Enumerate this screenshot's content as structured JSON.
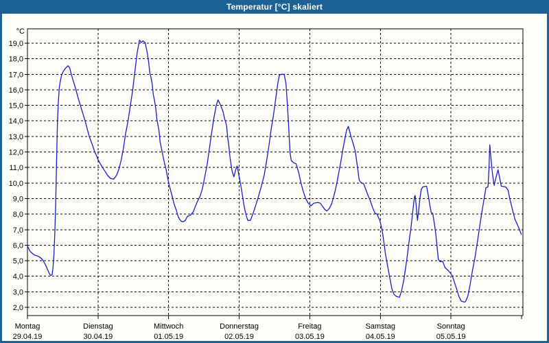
{
  "window": {
    "title": "Temperatur [°C] skaliert"
  },
  "colors": {
    "titlebar_bg": "#1D6295",
    "titlebar_text": "#FFFFFF",
    "window_border": "#1D6295",
    "client_bg": "#FDFEF9",
    "grid": "#000000",
    "text": "#000000",
    "curve": "#1A1AC8"
  },
  "chart_data": {
    "type": "line",
    "title": "Temperatur [°C] skaliert",
    "xlabel": "",
    "ylabel": "°C",
    "grid": "dashed-black",
    "legend_position": "none",
    "y_axis": {
      "unit": "°C",
      "min": 2,
      "max": 19,
      "step": 1,
      "tick_labels": [
        "19,0",
        "18,0",
        "17,0",
        "16,0",
        "15,0",
        "14,0",
        "13,0",
        "12,0",
        "11,0",
        "10,0",
        "9,0",
        "8,0",
        "7,0",
        "6,0",
        "5,0",
        "4,0",
        "3,0",
        "2,0"
      ],
      "plot_value_range": [
        1.5,
        19.9
      ]
    },
    "x_axis": {
      "hours_total": 168,
      "days": [
        {
          "name": "Montag",
          "date": "29.04.19"
        },
        {
          "name": "Dienstag",
          "date": "30.04.19"
        },
        {
          "name": "Mittwoch",
          "date": "01.05.19"
        },
        {
          "name": "Donnerstag",
          "date": "02.05.19"
        },
        {
          "name": "Freitag",
          "date": "03.05.19"
        },
        {
          "name": "Samstag",
          "date": "04.05.19"
        },
        {
          "name": "Sonntag",
          "date": "05.05.19"
        }
      ]
    },
    "series": [
      {
        "name": "Temperatur",
        "color": "#1A1AC8",
        "points_format": "[hours_since_mon_00, temp_celsius]",
        "points": [
          [
            0,
            5.95
          ],
          [
            0.9,
            5.6
          ],
          [
            1.8,
            5.45
          ],
          [
            2.6,
            5.35
          ],
          [
            3.5,
            5.3
          ],
          [
            4.4,
            5.2
          ],
          [
            5.2,
            5.05
          ],
          [
            6.1,
            4.75
          ],
          [
            6.9,
            4.4
          ],
          [
            7.5,
            4.15
          ],
          [
            7.9,
            4.05
          ],
          [
            8.4,
            4.1
          ],
          [
            8.7,
            4.6
          ],
          [
            9,
            5.4
          ],
          [
            9.3,
            6.8
          ],
          [
            9.6,
            8.6
          ],
          [
            9.8,
            10.5
          ],
          [
            10,
            12.3
          ],
          [
            10.2,
            13.9
          ],
          [
            10.5,
            15.2
          ],
          [
            10.8,
            16.1
          ],
          [
            11.2,
            16.6
          ],
          [
            11.7,
            17
          ],
          [
            12.4,
            17.25
          ],
          [
            13,
            17.4
          ],
          [
            13.8,
            17.55
          ],
          [
            14.4,
            17.4
          ],
          [
            14.9,
            17
          ],
          [
            15.7,
            16.5
          ],
          [
            16.5,
            16
          ],
          [
            17.2,
            15.5
          ],
          [
            18,
            15
          ],
          [
            18.8,
            14.5
          ],
          [
            19.6,
            14
          ],
          [
            20.3,
            13.5
          ],
          [
            21,
            13
          ],
          [
            21.9,
            12.55
          ],
          [
            22.9,
            12
          ],
          [
            23.5,
            11.75
          ],
          [
            24,
            11.5
          ],
          [
            24.9,
            11.2
          ],
          [
            25.7,
            10.95
          ],
          [
            26.4,
            10.75
          ],
          [
            27.2,
            10.5
          ],
          [
            28.2,
            10.3
          ],
          [
            29.3,
            10.25
          ],
          [
            30.3,
            10.5
          ],
          [
            31.1,
            10.9
          ],
          [
            31.9,
            11.5
          ],
          [
            32.7,
            12.3
          ],
          [
            33.4,
            13.2
          ],
          [
            34.2,
            14
          ],
          [
            35,
            15
          ],
          [
            35.8,
            16
          ],
          [
            36.6,
            17.3
          ],
          [
            37.3,
            18.4
          ],
          [
            38.1,
            19.2
          ],
          [
            38.7,
            19.05
          ],
          [
            39.3,
            19.15
          ],
          [
            40,
            19.05
          ],
          [
            40.4,
            18.7
          ],
          [
            40.8,
            18.3
          ],
          [
            41.2,
            17.8
          ],
          [
            41.6,
            17.1
          ],
          [
            42,
            16.8
          ],
          [
            42.4,
            16.4
          ],
          [
            42.8,
            15.7
          ],
          [
            43.2,
            15.3
          ],
          [
            43.6,
            14.85
          ],
          [
            44,
            14.1
          ],
          [
            44.4,
            13.7
          ],
          [
            44.7,
            13.4
          ],
          [
            45.1,
            12.65
          ],
          [
            45.5,
            12.3
          ],
          [
            45.9,
            11.9
          ],
          [
            46.3,
            11.55
          ],
          [
            46.7,
            11.2
          ],
          [
            47.1,
            10.9
          ],
          [
            47.5,
            10.5
          ],
          [
            47.8,
            10.2
          ],
          [
            48.2,
            9.85
          ],
          [
            49,
            9.3
          ],
          [
            49.8,
            8.7
          ],
          [
            50.6,
            8.25
          ],
          [
            51.3,
            7.8
          ],
          [
            52.2,
            7.55
          ],
          [
            53,
            7.5
          ],
          [
            53.7,
            7.6
          ],
          [
            54.4,
            7.85
          ],
          [
            55.5,
            7.95
          ],
          [
            56.4,
            8.15
          ],
          [
            57.2,
            8.55
          ],
          [
            58,
            8.9
          ],
          [
            58.7,
            9.15
          ],
          [
            59.5,
            9.65
          ],
          [
            60.3,
            10.4
          ],
          [
            61.1,
            11.2
          ],
          [
            61.8,
            12.15
          ],
          [
            62.6,
            13.2
          ],
          [
            63.4,
            14.2
          ],
          [
            64.2,
            15
          ],
          [
            64.8,
            15.35
          ],
          [
            65.7,
            15
          ],
          [
            66.5,
            14.6
          ],
          [
            66.9,
            14.25
          ],
          [
            67.7,
            13.7
          ],
          [
            68.1,
            12.9
          ],
          [
            68.5,
            12.35
          ],
          [
            68.8,
            11.75
          ],
          [
            69.2,
            11.2
          ],
          [
            69.6,
            10.75
          ],
          [
            70.2,
            10.4
          ],
          [
            70.8,
            10.85
          ],
          [
            71.3,
            11.1
          ],
          [
            71.9,
            10.5
          ],
          [
            72.3,
            10.1
          ],
          [
            72.7,
            9.65
          ],
          [
            73.1,
            9.2
          ],
          [
            73.5,
            8.7
          ],
          [
            73.9,
            8.3
          ],
          [
            74.4,
            7.9
          ],
          [
            74.9,
            7.6
          ],
          [
            75.8,
            7.6
          ],
          [
            77,
            8.2
          ],
          [
            78.2,
            8.9
          ],
          [
            79.3,
            9.65
          ],
          [
            80.5,
            10.5
          ],
          [
            81.3,
            11.4
          ],
          [
            82.1,
            12.4
          ],
          [
            82.8,
            13.4
          ],
          [
            83.6,
            14.3
          ],
          [
            84.4,
            15.4
          ],
          [
            85.2,
            16.5
          ],
          [
            85.7,
            16.95
          ],
          [
            86.3,
            17
          ],
          [
            87.3,
            17
          ],
          [
            87.9,
            16.4
          ],
          [
            88.3,
            15.3
          ],
          [
            88.7,
            14.1
          ],
          [
            89,
            13
          ],
          [
            89.3,
            11.95
          ],
          [
            89.7,
            11.45
          ],
          [
            90.5,
            11.3
          ],
          [
            91.3,
            11.25
          ],
          [
            92.2,
            10.7
          ],
          [
            93,
            10
          ],
          [
            93.7,
            9.5
          ],
          [
            94.5,
            9.05
          ],
          [
            95.3,
            8.75
          ],
          [
            96,
            8.6
          ],
          [
            96.5,
            8.55
          ],
          [
            97.3,
            8.7
          ],
          [
            98.7,
            8.75
          ],
          [
            99.6,
            8.7
          ],
          [
            100.3,
            8.5
          ],
          [
            101.1,
            8.3
          ],
          [
            101.8,
            8.2
          ],
          [
            102.6,
            8.35
          ],
          [
            103.4,
            8.65
          ],
          [
            104.1,
            9.1
          ],
          [
            104.7,
            9.55
          ],
          [
            105.2,
            10
          ],
          [
            105.8,
            10.6
          ],
          [
            106.5,
            11.3
          ],
          [
            107.2,
            12.1
          ],
          [
            107.9,
            12.8
          ],
          [
            108.5,
            13.4
          ],
          [
            109.1,
            13.65
          ],
          [
            110,
            13
          ],
          [
            110.8,
            12.5
          ],
          [
            111.5,
            12
          ],
          [
            112.3,
            10.9
          ],
          [
            112.8,
            10.2
          ],
          [
            113.3,
            10.05
          ],
          [
            114.3,
            9.95
          ],
          [
            115,
            9.6
          ],
          [
            115.8,
            9.2
          ],
          [
            116.6,
            8.85
          ],
          [
            117.4,
            8.4
          ],
          [
            118.2,
            8.05
          ],
          [
            118.9,
            8
          ],
          [
            119.3,
            7.8
          ],
          [
            119.8,
            7.6
          ],
          [
            120.5,
            7.05
          ],
          [
            120.9,
            6.6
          ],
          [
            121.3,
            6.05
          ],
          [
            121.7,
            5.45
          ],
          [
            122.2,
            4.95
          ],
          [
            122.7,
            4.4
          ],
          [
            123.3,
            3.8
          ],
          [
            123.9,
            3.2
          ],
          [
            124.6,
            2.85
          ],
          [
            125.4,
            2.7
          ],
          [
            126.5,
            2.65
          ],
          [
            127.2,
            3.05
          ],
          [
            128,
            3.8
          ],
          [
            128.7,
            4.7
          ],
          [
            129.1,
            5.25
          ],
          [
            129.5,
            5.85
          ],
          [
            129.9,
            6.45
          ],
          [
            130.3,
            6.95
          ],
          [
            130.7,
            7.6
          ],
          [
            131.1,
            8.35
          ],
          [
            131.6,
            9.1
          ],
          [
            131.8,
            9.2
          ],
          [
            132.2,
            8.5
          ],
          [
            132.6,
            7.6
          ],
          [
            133,
            8.2
          ],
          [
            133.4,
            8.95
          ],
          [
            133.9,
            9.6
          ],
          [
            134.4,
            9.75
          ],
          [
            135.7,
            9.8
          ],
          [
            136.1,
            9.4
          ],
          [
            136.5,
            8.95
          ],
          [
            136.9,
            8.5
          ],
          [
            137.3,
            8.1
          ],
          [
            137.8,
            8.05
          ],
          [
            138.5,
            7.2
          ],
          [
            138.9,
            6.6
          ],
          [
            139.3,
            5.85
          ],
          [
            139.7,
            5.1
          ],
          [
            140.2,
            4.95
          ],
          [
            141.2,
            4.95
          ],
          [
            142,
            4.55
          ],
          [
            142.9,
            4.4
          ],
          [
            143.6,
            4.25
          ],
          [
            144.4,
            4.05
          ],
          [
            145.2,
            3.6
          ],
          [
            145.9,
            3.2
          ],
          [
            146.7,
            2.7
          ],
          [
            147.5,
            2.4
          ],
          [
            148.3,
            2.35
          ],
          [
            148.9,
            2.35
          ],
          [
            149.7,
            2.7
          ],
          [
            150.5,
            3.45
          ],
          [
            151.3,
            4.35
          ],
          [
            152.1,
            5.15
          ],
          [
            152.9,
            6.1
          ],
          [
            153.6,
            7
          ],
          [
            154.4,
            8
          ],
          [
            155.2,
            8.9
          ],
          [
            155.9,
            9.7
          ],
          [
            156.6,
            9.75
          ],
          [
            156.9,
            10.8
          ],
          [
            157.2,
            12.45
          ],
          [
            157.6,
            11.6
          ],
          [
            158.1,
            10.6
          ],
          [
            158.7,
            9.85
          ],
          [
            159.3,
            10.35
          ],
          [
            160,
            10.85
          ],
          [
            160.6,
            10.3
          ],
          [
            161.1,
            9.8
          ],
          [
            162.6,
            9.75
          ],
          [
            163.4,
            9.55
          ],
          [
            164.1,
            8.9
          ],
          [
            164.9,
            8.3
          ],
          [
            165.7,
            7.7
          ],
          [
            166.4,
            7.4
          ],
          [
            167.2,
            7.05
          ],
          [
            167.9,
            6.7
          ]
        ]
      }
    ]
  }
}
